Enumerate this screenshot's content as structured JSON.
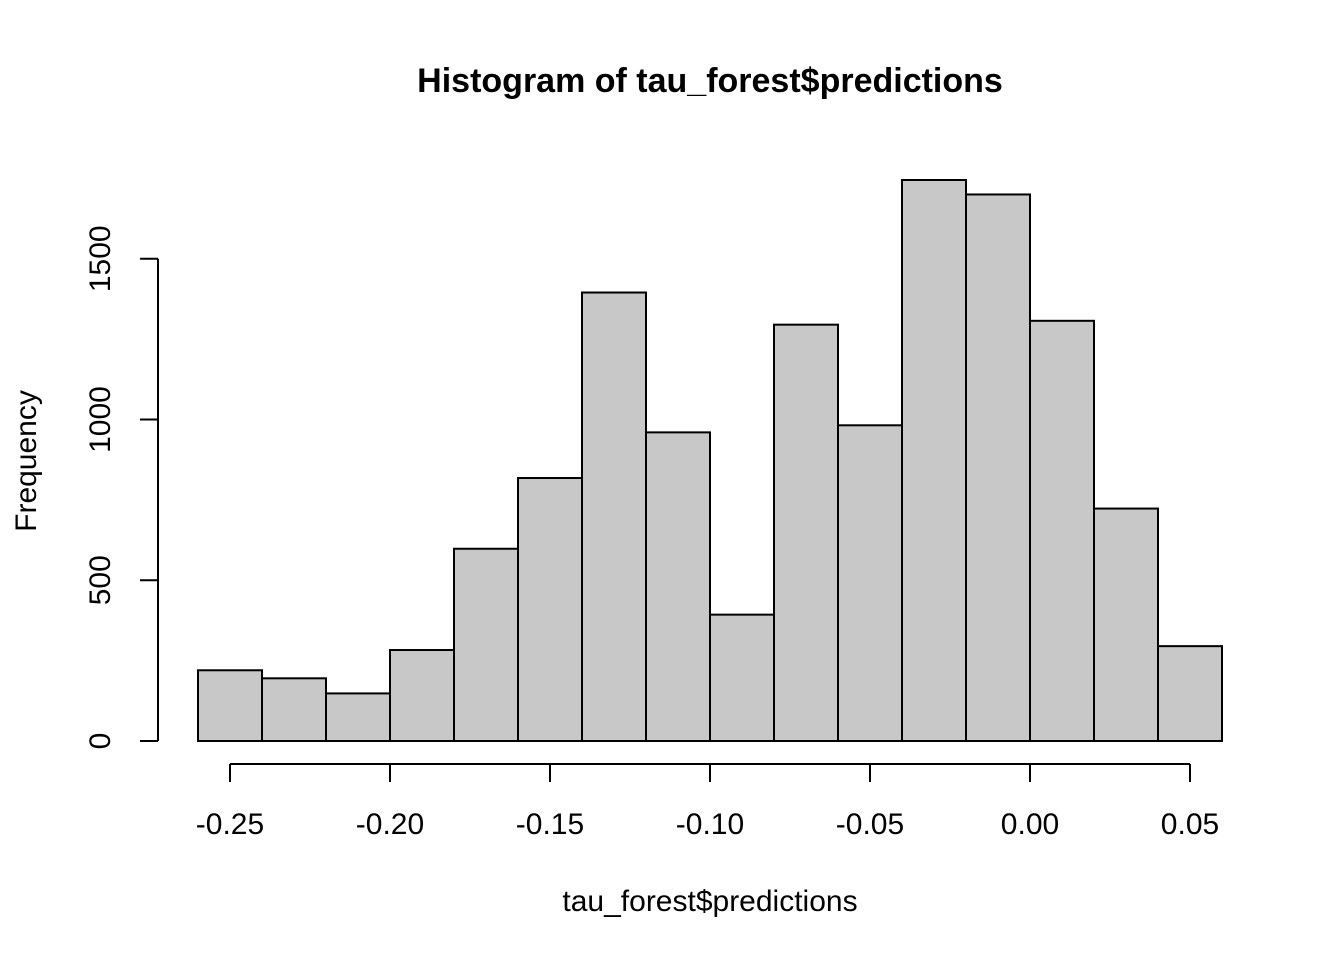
{
  "chart_data": {
    "type": "bar",
    "title": "Histogram of tau_forest$predictions",
    "xlabel": "tau_forest$predictions",
    "ylabel": "Frequency",
    "bin_edges": [
      -0.26,
      -0.24,
      -0.22,
      -0.2,
      -0.18,
      -0.16,
      -0.14,
      -0.12,
      -0.1,
      -0.08,
      -0.06,
      -0.04,
      -0.02,
      0.0,
      0.02,
      0.04,
      0.06
    ],
    "values": [
      220,
      195,
      148,
      283,
      598,
      818,
      1395,
      960,
      393,
      1295,
      982,
      1745,
      1700,
      1307,
      723,
      295
    ],
    "xlim": [
      -0.26,
      0.06
    ],
    "ylim": [
      0,
      1745
    ],
    "x_ticks": [
      -0.25,
      -0.2,
      -0.15,
      -0.1,
      -0.05,
      0.0,
      0.05
    ],
    "x_tick_labels": [
      "-0.25",
      "-0.20",
      "-0.15",
      "-0.10",
      "-0.05",
      "0.00",
      "0.05"
    ],
    "y_ticks": [
      0,
      500,
      1000,
      1500
    ],
    "y_tick_labels": [
      "0",
      "500",
      "1000",
      "1500"
    ],
    "bar_fill": "#c8c8c8",
    "bar_stroke": "#000000",
    "grid": false
  }
}
